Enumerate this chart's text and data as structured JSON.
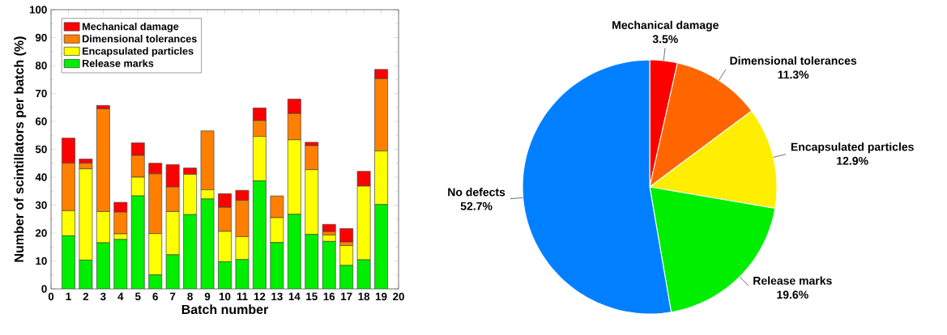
{
  "chart_data": [
    {
      "type": "bar",
      "stacked": true,
      "xlabel": "Batch number",
      "ylabel": "Number of scintillators per batch (%)",
      "x": [
        1,
        2,
        3,
        4,
        5,
        6,
        7,
        8,
        9,
        10,
        11,
        12,
        13,
        14,
        15,
        16,
        17,
        18,
        19
      ],
      "series": [
        {
          "name": "Release marks",
          "color": "#00ee00",
          "values": [
            19,
            10.3,
            16.5,
            17.7,
            33.3,
            5,
            12.2,
            26.6,
            32.2,
            9.7,
            10.5,
            38.7,
            16.6,
            26.7,
            19.5,
            17,
            8.4,
            10.4,
            30.2
          ]
        },
        {
          "name": "Encapsulated particles",
          "color": "#ffff00",
          "values": [
            9,
            32.7,
            11.2,
            2,
            6.7,
            14.8,
            15.5,
            14.4,
            3.3,
            10.9,
            8.2,
            15.9,
            8.9,
            26.7,
            23.2,
            2.3,
            7.1,
            26.4,
            19.2
          ]
        },
        {
          "name": "Dimensional tolerances",
          "color": "#ff8000",
          "values": [
            17,
            2,
            36.8,
            7.8,
            7.8,
            21.4,
            8.8,
            0,
            21.1,
            8.6,
            13,
            5.7,
            7.8,
            9.4,
            8.6,
            1.2,
            1.3,
            0,
            25.9
          ]
        },
        {
          "name": "Mechanical damage",
          "color": "#ff0000",
          "values": [
            9,
            1.5,
            1.2,
            3.5,
            4.5,
            3.8,
            8,
            2.3,
            0,
            4.9,
            3.6,
            4.5,
            0,
            5.2,
            1.2,
            2.6,
            4.8,
            5.3,
            3.3
          ]
        }
      ],
      "xlim": [
        0,
        20
      ],
      "xticks": [
        0,
        1,
        2,
        3,
        4,
        5,
        6,
        7,
        8,
        9,
        10,
        11,
        12,
        13,
        14,
        15,
        16,
        17,
        18,
        19,
        20
      ],
      "ylim": [
        0,
        100
      ],
      "yticks": [
        0,
        10,
        20,
        30,
        40,
        50,
        60,
        70,
        80,
        90,
        100
      ],
      "legend": "top left"
    },
    {
      "type": "pie",
      "categories": [
        "Mechanical damage",
        "Dimensional tolerances",
        "Encapsulated particles",
        "Release marks",
        "No defects"
      ],
      "values": [
        3.5,
        11.3,
        12.9,
        19.6,
        52.7
      ],
      "value_labels": [
        "3.5%",
        "11.3%",
        "12.9%",
        "19.6%",
        "52.7%"
      ],
      "colors": [
        "#ff0000",
        "#ff6600",
        "#ffee00",
        "#00ee00",
        "#0080ff"
      ]
    }
  ]
}
